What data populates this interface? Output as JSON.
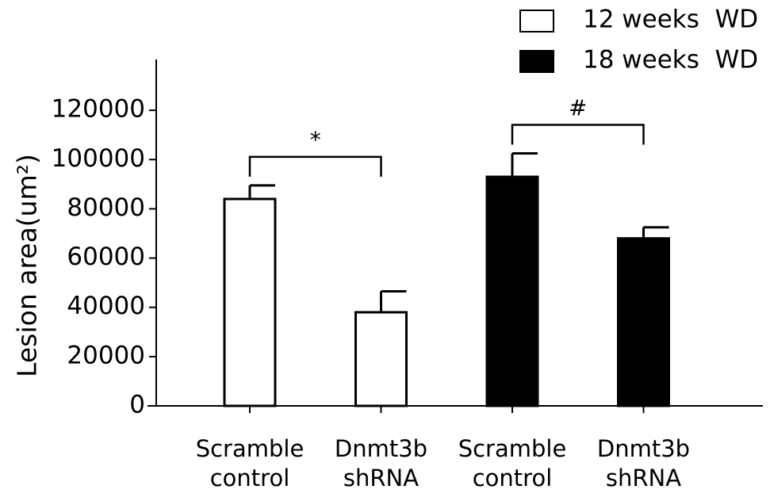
{
  "chart_data": {
    "type": "bar",
    "y_label": "Lesion area(um²)",
    "categories": [
      "Scramble control",
      "Dnmt3b shRNA",
      "Scramble control",
      "Dnmt3b shRNA"
    ],
    "series": [
      {
        "name": "12 weeks  WD",
        "color": "#ffffff",
        "values": [
          84000,
          38000,
          null,
          null
        ],
        "errors": [
          5500,
          8500,
          null,
          null
        ]
      },
      {
        "name": "18 weeks  WD",
        "color": "#000000",
        "values": [
          null,
          null,
          93000,
          68000
        ],
        "errors": [
          null,
          null,
          9500,
          4500
        ]
      }
    ],
    "annotations": [
      "*",
      "#"
    ],
    "ylim": [
      0,
      140000
    ],
    "yticks": [
      0,
      20000,
      40000,
      60000,
      80000,
      100000,
      120000
    ],
    "legend": "top-right"
  }
}
